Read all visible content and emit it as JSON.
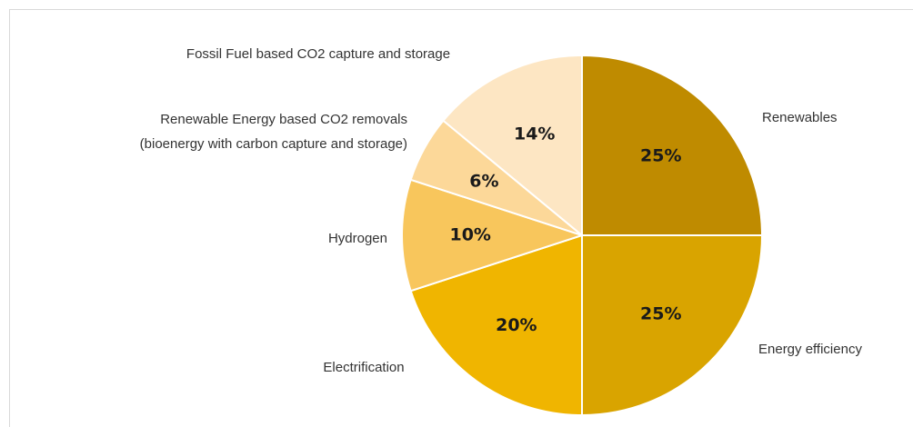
{
  "chart_data": {
    "type": "pie",
    "categories": [
      "Renewables",
      "Energy efficiency",
      "Electrification",
      "Hydrogen",
      "Renewable Energy based CO2 removals (bioenergy with carbon capture and storage)",
      "Fossil Fuel based CO2 capture and storage"
    ],
    "values": [
      25,
      25,
      20,
      10,
      6,
      14
    ],
    "value_labels": [
      "25%",
      "25%",
      "20%",
      "10%",
      "6%",
      "14%"
    ],
    "colors": [
      "#bf8b00",
      "#d9a400",
      "#f0b500",
      "#f8c65c",
      "#fcd899",
      "#fde6c3"
    ]
  }
}
